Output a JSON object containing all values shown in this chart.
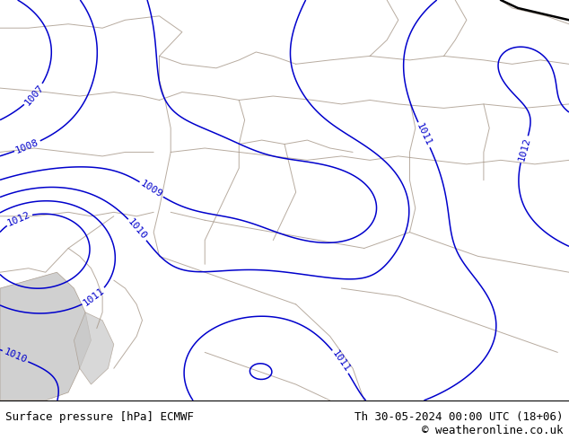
{
  "title_left": "Surface pressure [hPa] ECMWF",
  "title_right": "Th 30-05-2024 00:00 UTC (18+06)",
  "copyright": "© weatheronline.co.uk",
  "background_color": "#aae870",
  "sea_color": "#c8c8c8",
  "border_color": "#a09080",
  "isobar_color": "#0000cc",
  "title_fontsize": 9,
  "isobar_fontsize": 8,
  "pressure_levels": [
    1007,
    1008,
    1009,
    1010,
    1011,
    1012
  ],
  "contour_linewidth": 1.1
}
